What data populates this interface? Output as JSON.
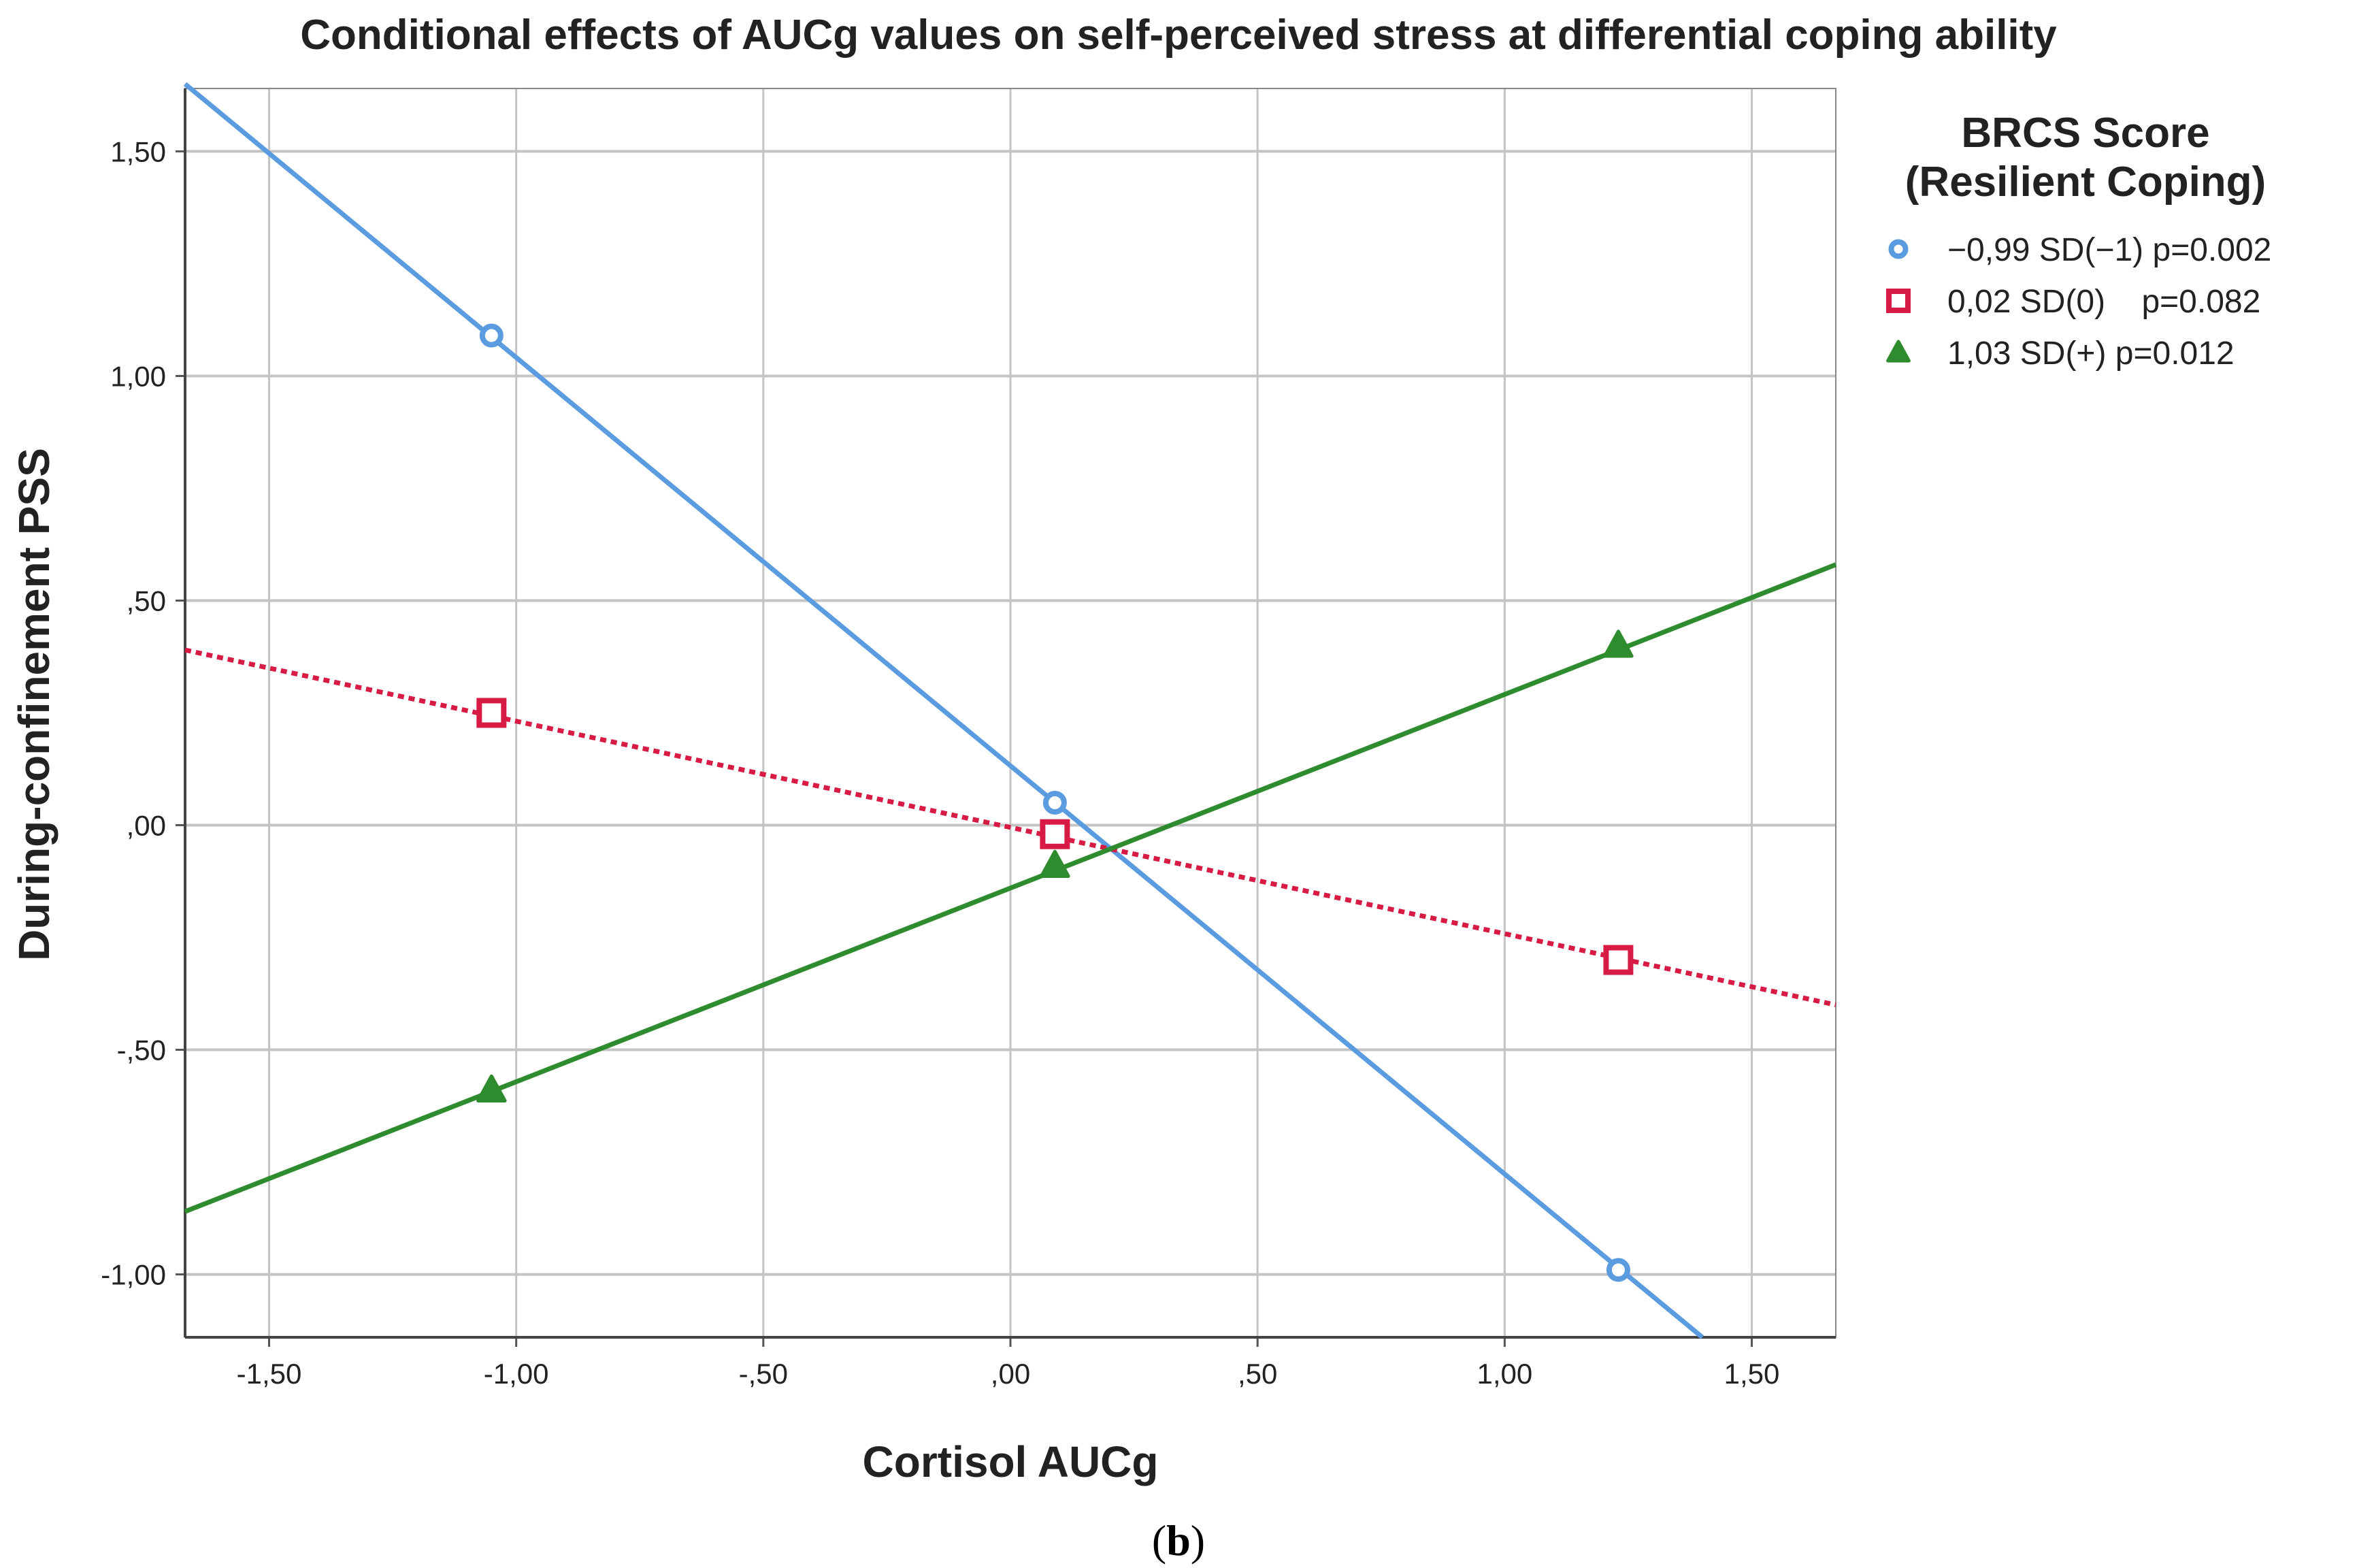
{
  "chart_data": {
    "type": "line",
    "title": "Conditional effects of AUCg values on self-perceived stress at differential coping ability",
    "xlabel": "Cortisol AUCg",
    "ylabel": "During-confinement PSS",
    "caption_prefix": "(",
    "caption_bold": "b",
    "caption_suffix": ")",
    "xlim": [
      -1.67,
      1.67
    ],
    "ylim": [
      -1.14,
      1.64
    ],
    "x_ticks": [
      -1.5,
      -1.0,
      -0.5,
      0.0,
      0.5,
      1.0,
      1.5
    ],
    "x_tick_labels": [
      "-1,50",
      "-1,00",
      "-,50",
      ",00",
      ",50",
      "1,00",
      "1,50"
    ],
    "y_ticks": [
      1.5,
      1.0,
      0.5,
      0.0,
      -0.5,
      -1.0
    ],
    "y_tick_labels": [
      "1,50",
      "1,00",
      ",50",
      ",00",
      "-,50",
      "-1,00"
    ],
    "grid": true,
    "legend": {
      "position": "right",
      "title_line1": "BRCS Score",
      "title_line2": "(Resilient Coping)"
    },
    "series": [
      {
        "name": "−0,99 SD(−1) p=0.002",
        "marker": "circle",
        "color": "#5b9be0",
        "line_style": "solid",
        "x": [
          -1.05,
          0.09,
          1.23
        ],
        "y": [
          1.09,
          0.05,
          -0.99
        ],
        "line_start": [
          -1.67,
          1.65
        ],
        "line_end": [
          1.4,
          -1.14
        ]
      },
      {
        "name": "0,02 SD(0)    p=0.082",
        "marker": "square",
        "color": "#d81b44",
        "line_style": "dotted",
        "x": [
          -1.05,
          0.09,
          1.23
        ],
        "y": [
          0.25,
          -0.02,
          -0.3
        ],
        "line_start": [
          -1.67,
          0.39
        ],
        "line_end": [
          1.67,
          -0.4
        ]
      },
      {
        "name": "1,03 SD(+) p=0.012",
        "marker": "triangle",
        "color": "#2e8b2e",
        "line_style": "solid",
        "x": [
          -1.05,
          0.09,
          1.23
        ],
        "y": [
          -0.59,
          -0.09,
          0.4
        ],
        "line_start": [
          -1.67,
          -0.86
        ],
        "line_end": [
          1.67,
          0.58
        ]
      }
    ]
  }
}
